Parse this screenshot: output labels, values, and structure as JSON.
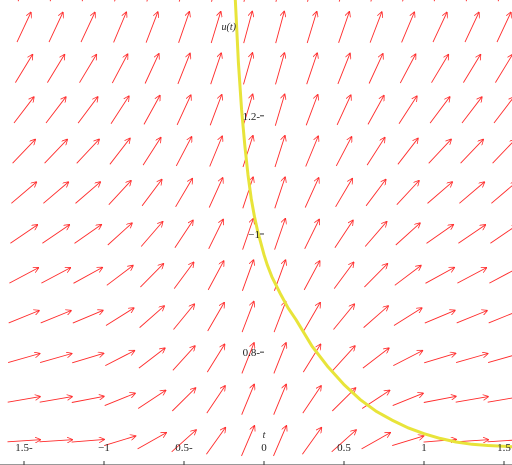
{
  "chart_data": {
    "type": "line",
    "title": "",
    "xlabel": "t",
    "ylabel": "u(t)",
    "xlim": [
      -1.65,
      1.55
    ],
    "ylim": [
      1.396,
      0.609
    ],
    "x_ticks": [
      {
        "value": -1.5,
        "label": "1.5-"
      },
      {
        "value": -1.0,
        "label": "−1"
      },
      {
        "value": -0.5,
        "label": "0.5-"
      },
      {
        "value": 0.0,
        "label": "0"
      },
      {
        "value": 0.5,
        "label": "0.5"
      },
      {
        "value": 1.0,
        "label": "1"
      },
      {
        "value": 1.5,
        "label": "1.5"
      }
    ],
    "y_ticks": [
      {
        "value": 0.8,
        "label": "0.8-"
      },
      {
        "value": 1.0,
        "label": "−1"
      },
      {
        "value": 1.2,
        "label": "1.2-"
      }
    ],
    "direction_field": {
      "color": "#ff2a2a",
      "columns_t": [
        -1.5,
        -1.3,
        -1.1,
        -0.9,
        -0.7,
        -0.5,
        -0.3,
        -0.1,
        0.1,
        0.3,
        0.5,
        0.7,
        0.9,
        1.1,
        1.3,
        1.5
      ],
      "rows_u": [
        0.65,
        0.72,
        0.79,
        0.86,
        0.93,
        1.0,
        1.07,
        1.14,
        1.21,
        1.28,
        1.35,
        1.42
      ]
    },
    "series": [
      {
        "color": "#e8e43a",
        "x": [
          -0.18,
          -0.16,
          -0.14,
          -0.12,
          -0.1,
          -0.08,
          -0.06,
          -0.04,
          -0.02,
          0.0,
          0.02,
          0.05,
          0.1,
          0.15,
          0.2,
          0.3,
          0.4,
          0.5,
          0.6,
          0.7,
          0.8,
          0.9,
          1.0,
          1.1,
          1.2,
          1.3,
          1.4,
          1.55
        ],
        "y": [
          1.4,
          1.29,
          1.21,
          1.15,
          1.1,
          1.06,
          1.03,
          1.005,
          0.985,
          0.965,
          0.948,
          0.927,
          0.9,
          0.875,
          0.855,
          0.81,
          0.775,
          0.745,
          0.72,
          0.7,
          0.685,
          0.672,
          0.662,
          0.654,
          0.648,
          0.644,
          0.642,
          0.64
        ]
      }
    ]
  }
}
